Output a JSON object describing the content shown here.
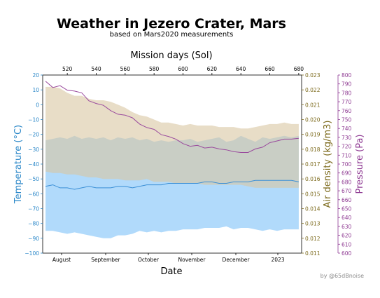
{
  "chart_data": {
    "type": "area",
    "title": "Weather in Jezero Crater, Mars",
    "subtitle": "based on Mars2020 measurements",
    "credit": "by @65dBnoise",
    "xlabel": "Date",
    "x_ticks": [
      "August",
      "September",
      "October",
      "November",
      "December",
      "2023"
    ],
    "top_axis": {
      "label": "Mission days (Sol)",
      "range": [
        503,
        682
      ],
      "ticks": [
        "520",
        "540",
        "560",
        "580",
        "600",
        "620",
        "640",
        "660",
        "680"
      ]
    },
    "temperature_axis": {
      "label": "Temperature (°C)",
      "range": [
        -100,
        20
      ],
      "ticks": [
        "20",
        "10",
        "0",
        "−10",
        "−20",
        "−30",
        "−40",
        "−50",
        "−60",
        "−70",
        "−80",
        "−90",
        "−100"
      ]
    },
    "density_axis": {
      "label": "Air density (kg/m3)",
      "range": [
        0.011,
        0.023
      ],
      "ticks": [
        "0.023",
        "0.022",
        "0.021",
        "0.020",
        "0.019",
        "0.018",
        "0.017",
        "0.016",
        "0.015",
        "0.014",
        "0.013",
        "0.012",
        "0.011"
      ]
    },
    "pressure_axis": {
      "label": "Pressure (Pa)",
      "range": [
        600,
        800
      ],
      "ticks": [
        "800",
        "790",
        "780",
        "770",
        "760",
        "750",
        "740",
        "730",
        "720",
        "710",
        "700",
        "690",
        "680",
        "670",
        "660",
        "650",
        "640",
        "630",
        "620",
        "610",
        "600"
      ]
    },
    "x_sol": [
      505,
      510,
      515,
      520,
      525,
      530,
      535,
      540,
      545,
      550,
      555,
      560,
      565,
      570,
      575,
      580,
      585,
      590,
      595,
      600,
      605,
      610,
      615,
      620,
      625,
      630,
      635,
      640,
      645,
      650,
      655,
      660,
      665,
      670,
      675,
      680
    ],
    "series": [
      {
        "name": "Temperature range",
        "color": "#a9d6fb",
        "upper": [
          -24,
          -23,
          -22,
          -23,
          -21,
          -23,
          -22,
          -23,
          -22,
          -24,
          -22,
          -23,
          -22,
          -24,
          -23,
          -25,
          -24,
          -25,
          -24,
          -24,
          -23,
          -25,
          -24,
          -23,
          -22,
          -25,
          -24,
          -21,
          -23,
          -25,
          -22,
          -23,
          -22,
          -21,
          -22,
          -21
        ],
        "lower": [
          -85,
          -85,
          -86,
          -87,
          -86,
          -87,
          -88,
          -89,
          -90,
          -90,
          -88,
          -88,
          -87,
          -85,
          -86,
          -85,
          -86,
          -85,
          -85,
          -84,
          -84,
          -84,
          -83,
          -83,
          -83,
          -82,
          -84,
          -83,
          -83,
          -84,
          -85,
          -84,
          -85,
          -84,
          -84,
          -84
        ]
      },
      {
        "name": "Air density range",
        "color": "#d8c7a2",
        "upper": [
          0.0222,
          0.0222,
          0.0221,
          0.0218,
          0.0216,
          0.0216,
          0.0214,
          0.0213,
          0.0213,
          0.0212,
          0.021,
          0.0208,
          0.0205,
          0.0203,
          0.0202,
          0.02,
          0.0198,
          0.0198,
          0.0197,
          0.0196,
          0.0197,
          0.0196,
          0.0196,
          0.0196,
          0.0195,
          0.0195,
          0.0195,
          0.0194,
          0.0194,
          0.0195,
          0.0196,
          0.0197,
          0.0197,
          0.0198,
          0.0197,
          0.0197
        ],
        "lower": [
          0.0165,
          0.0164,
          0.0164,
          0.0163,
          0.0163,
          0.0162,
          0.0161,
          0.0161,
          0.016,
          0.016,
          0.016,
          0.0159,
          0.0159,
          0.0159,
          0.016,
          0.0158,
          0.0158,
          0.0158,
          0.0157,
          0.0157,
          0.0157,
          0.0157,
          0.0156,
          0.0156,
          0.0156,
          0.0156,
          0.0156,
          0.0156,
          0.0155,
          0.0154,
          0.0154,
          0.0154,
          0.0154,
          0.0154,
          0.0154,
          0.0154
        ]
      },
      {
        "name": "Mean temperature",
        "color": "#3a8fd6",
        "values": [
          -55,
          -54,
          -56,
          -56,
          -57,
          -56,
          -55,
          -56,
          -56,
          -56,
          -55,
          -55,
          -56,
          -55,
          -54,
          -54,
          -54,
          -53,
          -53,
          -53,
          -53,
          -53,
          -52,
          -52,
          -53,
          -53,
          -52,
          -52,
          -52,
          -51,
          -51,
          -51,
          -51,
          -51,
          -51,
          -52
        ]
      },
      {
        "name": "Mean pressure",
        "color": "#9a4a9d",
        "values": [
          793,
          786,
          788,
          783,
          782,
          780,
          771,
          768,
          766,
          760,
          756,
          755,
          752,
          745,
          741,
          739,
          733,
          731,
          728,
          723,
          720,
          721,
          718,
          719,
          717,
          716,
          714,
          713,
          713,
          717,
          719,
          724,
          726,
          728,
          728,
          729
        ]
      }
    ],
    "grid": false,
    "legend": "none"
  }
}
